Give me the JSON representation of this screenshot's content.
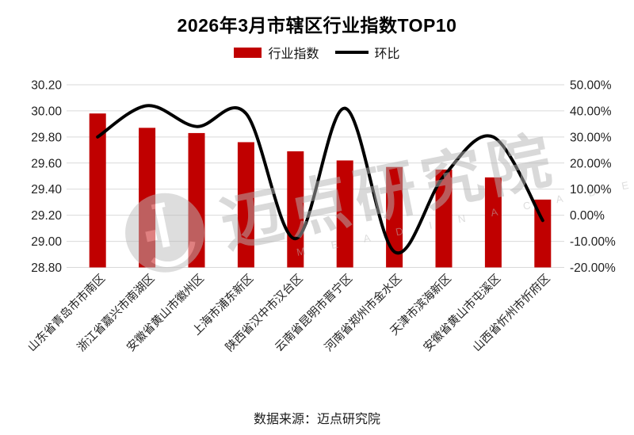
{
  "header": {
    "title": "2026年3月市辖区行业指数TOP10"
  },
  "legend": {
    "bar": "行业指数",
    "line": "环比"
  },
  "footer": {
    "source": "数据来源：迈点研究院"
  },
  "watermark": {
    "text": "迈点研究院",
    "subtext": "M E A D I N  A C A D E M Y"
  },
  "chart_data": {
    "type": "bar+line",
    "title": "2026年3月市辖区行业指数TOP10",
    "categories": [
      "山东省青岛市市南区",
      "浙江省嘉兴市南湖区",
      "安徽省黄山市徽州区",
      "上海市浦东新区",
      "陕西省汉中市汉台区",
      "云南省昆明市晋宁区",
      "河南省郑州市金水区",
      "天津市滨海新区",
      "安徽省黄山市屯溪区",
      "山西省忻州市忻府区"
    ],
    "series": [
      {
        "name": "行业指数",
        "type": "bar",
        "axis": "left",
        "values": [
          29.98,
          29.87,
          29.83,
          29.76,
          29.69,
          29.62,
          29.57,
          29.55,
          29.49,
          29.32
        ]
      },
      {
        "name": "环比",
        "type": "line",
        "axis": "right",
        "values": [
          30,
          42,
          34,
          39,
          -9,
          41,
          -14,
          15,
          30,
          -2
        ]
      }
    ],
    "left_axis": {
      "min": 28.8,
      "max": 30.2,
      "step": 0.2,
      "ticks": [
        "30.20",
        "30.00",
        "29.80",
        "29.60",
        "29.40",
        "29.20",
        "29.00",
        "28.80"
      ]
    },
    "right_axis": {
      "min": -20,
      "max": 50,
      "step": 10,
      "ticks": [
        "50.00%",
        "40.00%",
        "30.00%",
        "20.00%",
        "10.00%",
        "0.00%",
        "-10.00%",
        "-20.00%"
      ]
    },
    "grid": true,
    "legend_position": "top",
    "colors": {
      "bar": "#c00000",
      "line": "#000000",
      "grid": "#d9d9d9",
      "axis_text": "#1f1f1f"
    }
  }
}
